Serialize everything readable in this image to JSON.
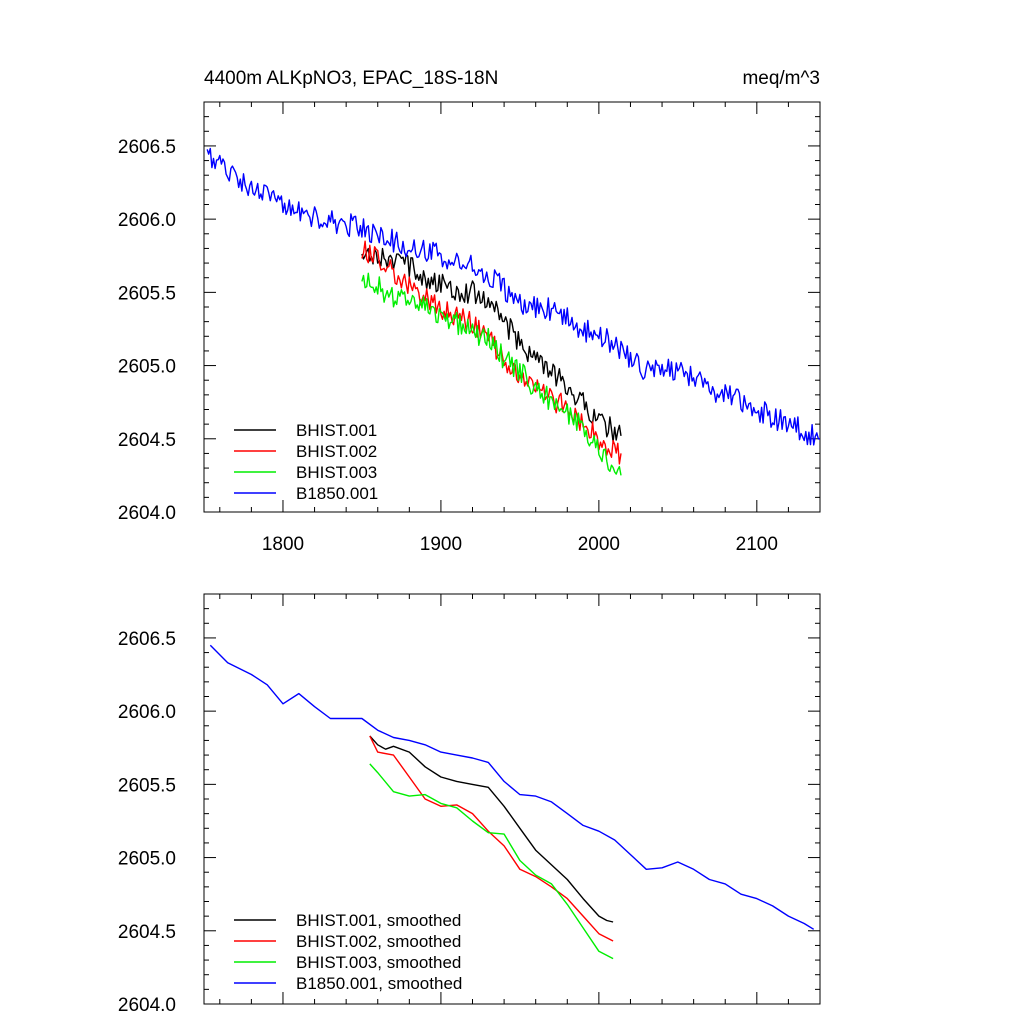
{
  "chart_data": [
    {
      "type": "line",
      "title": "4400m ALKpNO3, EPAC_18S-18N",
      "units": "meq/m^3",
      "xlabel": "",
      "ylabel": "",
      "xlim": [
        1750,
        2140
      ],
      "ylim": [
        2604.0,
        2606.8
      ],
      "xticks": [
        1800,
        1900,
        2000,
        2100
      ],
      "xtick_labels": [
        "1800",
        "1900",
        "2000",
        "2100"
      ],
      "yticks": [
        2604.0,
        2604.5,
        2605.0,
        2605.5,
        2606.0,
        2606.5
      ],
      "ytick_labels": [
        "2604.0",
        "2604.5",
        "2605.0",
        "2605.5",
        "2606.0",
        "2606.5"
      ],
      "legend_position": "bottom-left",
      "series": [
        {
          "name": "BHIST.001",
          "color": "#000000",
          "x": [
            1850,
            1860,
            1870,
            1880,
            1890,
            1900,
            1910,
            1920,
            1930,
            1940,
            1950,
            1960,
            1970,
            1980,
            1990,
            2000,
            2010,
            2014
          ],
          "y": [
            2605.8,
            2605.75,
            2605.72,
            2605.68,
            2605.6,
            2605.55,
            2605.52,
            2605.5,
            2605.45,
            2605.3,
            2605.15,
            2605.05,
            2604.95,
            2604.85,
            2604.75,
            2604.62,
            2604.55,
            2604.52
          ]
        },
        {
          "name": "BHIST.002",
          "color": "#ff0000",
          "x": [
            1850,
            1860,
            1870,
            1880,
            1890,
            1900,
            1910,
            1920,
            1930,
            1940,
            1950,
            1960,
            1970,
            1980,
            1990,
            2000,
            2010,
            2014
          ],
          "y": [
            2605.8,
            2605.72,
            2605.65,
            2605.55,
            2605.45,
            2605.38,
            2605.35,
            2605.28,
            2605.18,
            2605.05,
            2604.92,
            2604.85,
            2604.78,
            2604.7,
            2604.62,
            2604.5,
            2604.42,
            2604.4
          ]
        },
        {
          "name": "BHIST.003",
          "color": "#00ee00",
          "x": [
            1850,
            1860,
            1870,
            1880,
            1890,
            1900,
            1910,
            1920,
            1930,
            1940,
            1950,
            1960,
            1970,
            1980,
            1990,
            2000,
            2010,
            2014
          ],
          "y": [
            2605.62,
            2605.55,
            2605.45,
            2605.43,
            2605.4,
            2605.35,
            2605.3,
            2605.22,
            2605.18,
            2605.05,
            2604.95,
            2604.85,
            2604.75,
            2604.68,
            2604.58,
            2604.4,
            2604.3,
            2604.25
          ]
        },
        {
          "name": "B1850.001",
          "color": "#0000ff",
          "x": [
            1752,
            1770,
            1790,
            1810,
            1830,
            1850,
            1870,
            1890,
            1910,
            1930,
            1950,
            1970,
            1990,
            2010,
            2030,
            2050,
            2070,
            2090,
            2110,
            2130,
            2140
          ],
          "y": [
            2606.45,
            2606.28,
            2606.15,
            2606.05,
            2605.98,
            2605.95,
            2605.85,
            2605.78,
            2605.72,
            2605.62,
            2605.42,
            2605.38,
            2605.25,
            2605.15,
            2604.95,
            2604.98,
            2604.85,
            2604.75,
            2604.65,
            2604.55,
            2604.5
          ]
        }
      ]
    },
    {
      "type": "line",
      "title": "",
      "xlim": [
        1750,
        2140
      ],
      "ylim": [
        2604.0,
        2606.8
      ],
      "xticks": [
        1800,
        1900,
        2000,
        2100
      ],
      "yticks": [
        2604.0,
        2604.5,
        2605.0,
        2605.5,
        2606.0,
        2606.5
      ],
      "ytick_labels": [
        "2604.0",
        "2604.5",
        "2605.0",
        "2605.5",
        "2606.0",
        "2606.5"
      ],
      "legend_position": "bottom-left",
      "series": [
        {
          "name": "BHIST.001, smoothed",
          "color": "#000000",
          "x": [
            1855,
            1860,
            1865,
            1870,
            1880,
            1890,
            1900,
            1910,
            1920,
            1930,
            1940,
            1950,
            1960,
            1970,
            1980,
            1990,
            2000,
            2005,
            2009
          ],
          "y": [
            2605.83,
            2605.77,
            2605.74,
            2605.76,
            2605.72,
            2605.62,
            2605.55,
            2605.52,
            2605.5,
            2605.48,
            2605.35,
            2605.2,
            2605.05,
            2604.95,
            2604.85,
            2604.72,
            2604.6,
            2604.57,
            2604.56
          ]
        },
        {
          "name": "BHIST.002, smoothed",
          "color": "#ff0000",
          "x": [
            1855,
            1860,
            1870,
            1880,
            1890,
            1900,
            1910,
            1920,
            1930,
            1940,
            1950,
            1960,
            1970,
            1980,
            1990,
            2000,
            2009
          ],
          "y": [
            2605.83,
            2605.72,
            2605.7,
            2605.55,
            2605.4,
            2605.35,
            2605.36,
            2605.3,
            2605.18,
            2605.08,
            2604.92,
            2604.87,
            2604.8,
            2604.72,
            2604.6,
            2604.48,
            2604.43
          ]
        },
        {
          "name": "BHIST.003, smoothed",
          "color": "#00ee00",
          "x": [
            1855,
            1860,
            1870,
            1880,
            1890,
            1900,
            1910,
            1920,
            1930,
            1940,
            1950,
            1960,
            1970,
            1980,
            1990,
            2000,
            2009
          ],
          "y": [
            2605.64,
            2605.58,
            2605.45,
            2605.42,
            2605.43,
            2605.37,
            2605.34,
            2605.25,
            2605.17,
            2605.16,
            2604.98,
            2604.88,
            2604.82,
            2604.68,
            2604.52,
            2604.36,
            2604.31
          ]
        },
        {
          "name": "B1850.001, smoothed",
          "color": "#0000ff",
          "x": [
            1754,
            1765,
            1780,
            1790,
            1800,
            1810,
            1820,
            1830,
            1840,
            1850,
            1860,
            1870,
            1880,
            1890,
            1900,
            1910,
            1920,
            1930,
            1940,
            1950,
            1960,
            1970,
            1980,
            1990,
            2000,
            2010,
            2020,
            2030,
            2040,
            2050,
            2060,
            2070,
            2080,
            2090,
            2100,
            2110,
            2120,
            2130,
            2136
          ],
          "y": [
            2606.45,
            2606.33,
            2606.25,
            2606.18,
            2606.05,
            2606.12,
            2606.03,
            2605.95,
            2605.95,
            2605.95,
            2605.87,
            2605.82,
            2605.8,
            2605.77,
            2605.72,
            2605.7,
            2605.68,
            2605.65,
            2605.52,
            2605.43,
            2605.42,
            2605.38,
            2605.3,
            2605.22,
            2605.18,
            2605.12,
            2605.02,
            2604.92,
            2604.93,
            2604.97,
            2604.92,
            2604.85,
            2604.82,
            2604.75,
            2604.72,
            2604.67,
            2604.6,
            2604.55,
            2604.51
          ]
        }
      ]
    }
  ]
}
